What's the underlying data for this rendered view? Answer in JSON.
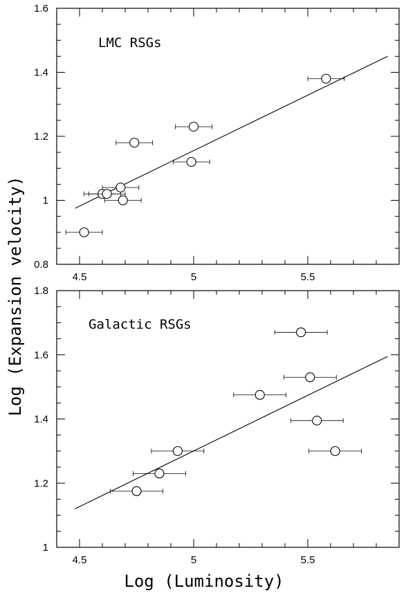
{
  "figure": {
    "ylabel": "Log (Expansion velocity)",
    "xlabel": "Log (Luminosity)"
  },
  "chart_data": [
    {
      "type": "scatter",
      "label": "LMC RSGs",
      "xlim": [
        4.4,
        5.9
      ],
      "ylim": [
        0.8,
        1.6
      ],
      "xticks": [
        4.5,
        5,
        5.5
      ],
      "xtick_labels": [
        "4.5",
        "5",
        "5.5"
      ],
      "yticks": [
        0.8,
        1.0,
        1.2,
        1.4,
        1.6
      ],
      "ytick_labels": [
        "0.8",
        "1",
        "1.2",
        "1.4",
        "1.6"
      ],
      "points": [
        {
          "x": 4.52,
          "y": 0.9,
          "xerr": 0.08
        },
        {
          "x": 4.6,
          "y": 1.02,
          "xerr": 0.08
        },
        {
          "x": 4.62,
          "y": 1.02,
          "xerr": 0.08
        },
        {
          "x": 4.68,
          "y": 1.04,
          "xerr": 0.08
        },
        {
          "x": 4.69,
          "y": 1.0,
          "xerr": 0.08
        },
        {
          "x": 4.74,
          "y": 1.18,
          "xerr": 0.08
        },
        {
          "x": 4.99,
          "y": 1.12,
          "xerr": 0.08
        },
        {
          "x": 5.0,
          "y": 1.23,
          "xerr": 0.08
        },
        {
          "x": 5.58,
          "y": 1.38,
          "xerr": 0.08
        }
      ],
      "fit_line": {
        "x": [
          4.48,
          5.85
        ],
        "y": [
          0.975,
          1.45
        ]
      },
      "grid": false
    },
    {
      "type": "scatter",
      "label": "Galactic RSGs",
      "xlim": [
        4.4,
        5.9
      ],
      "ylim": [
        1.0,
        1.8
      ],
      "xticks": [
        4.5,
        5,
        5.5
      ],
      "xtick_labels": [
        "4.5",
        "5",
        "5.5"
      ],
      "yticks": [
        1.0,
        1.2,
        1.4,
        1.6,
        1.8
      ],
      "ytick_labels": [
        "1",
        "1.2",
        "1.4",
        "1.6",
        "1.8"
      ],
      "points": [
        {
          "x": 4.75,
          "y": 1.175,
          "xerr": 0.115
        },
        {
          "x": 4.85,
          "y": 1.23,
          "xerr": 0.115
        },
        {
          "x": 4.93,
          "y": 1.3,
          "xerr": 0.115
        },
        {
          "x": 5.29,
          "y": 1.475,
          "xerr": 0.115
        },
        {
          "x": 5.47,
          "y": 1.67,
          "xerr": 0.115
        },
        {
          "x": 5.51,
          "y": 1.53,
          "xerr": 0.115
        },
        {
          "x": 5.54,
          "y": 1.395,
          "xerr": 0.115
        },
        {
          "x": 5.62,
          "y": 1.3,
          "xerr": 0.115
        }
      ],
      "fit_line": {
        "x": [
          4.48,
          5.85
        ],
        "y": [
          1.12,
          1.595
        ]
      },
      "grid": false
    }
  ]
}
